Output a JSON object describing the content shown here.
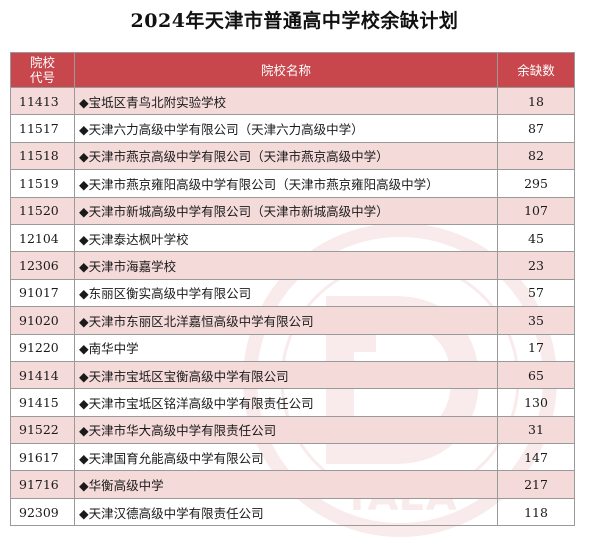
{
  "title": "2024年天津市普通高中学校余缺计划",
  "table": {
    "headers": [
      "院校\n代号",
      "院校名称",
      "余缺数"
    ],
    "rows": [
      {
        "code": "11413",
        "name": "◆宝坻区青鸟北附实验学校",
        "count": "18"
      },
      {
        "code": "11517",
        "name": "◆天津六力高级中学有限公司（天津六力高级中学）",
        "count": "87"
      },
      {
        "code": "11518",
        "name": "◆天津市燕京高级中学有限公司（天津市燕京高级中学）",
        "count": "82"
      },
      {
        "code": "11519",
        "name": "◆天津市燕京雍阳高级中学有限公司（天津市燕京雍阳高级中学）",
        "count": "295"
      },
      {
        "code": "11520",
        "name": "◆天津市新城高级中学有限公司（天津市新城高级中学）",
        "count": "107"
      },
      {
        "code": "12104",
        "name": "◆天津泰达枫叶学校",
        "count": "45"
      },
      {
        "code": "12306",
        "name": "◆天津市海嘉学校",
        "count": "23"
      },
      {
        "code": "91017",
        "name": "◆东丽区衡实高级中学有限公司",
        "count": "57"
      },
      {
        "code": "91020",
        "name": "◆天津市东丽区北洋嘉恒高级中学有限公司",
        "count": "35"
      },
      {
        "code": "91220",
        "name": "◆南华中学",
        "count": "17"
      },
      {
        "code": "91414",
        "name": "◆天津市宝坻区宝衡高级中学有限公司",
        "count": "65"
      },
      {
        "code": "91415",
        "name": "◆天津市宝坻区铭洋高级中学有限责任公司",
        "count": "130"
      },
      {
        "code": "91522",
        "name": "◆天津市华大高级中学有限责任公司",
        "count": "31"
      },
      {
        "code": "91617",
        "name": "◆天津国育允能高级中学有限公司",
        "count": "147"
      },
      {
        "code": "91716",
        "name": "◆华衡高级中学",
        "count": "217"
      },
      {
        "code": "92309",
        "name": "◆天津汉德高级中学有限责任公司",
        "count": "118"
      }
    ]
  },
  "watermark": {
    "text": "TAEA",
    "arc_text": "TIANJIN EDUCATIONAL EXAMINATIONS AUTHORITY",
    "color": "#c8474d"
  }
}
